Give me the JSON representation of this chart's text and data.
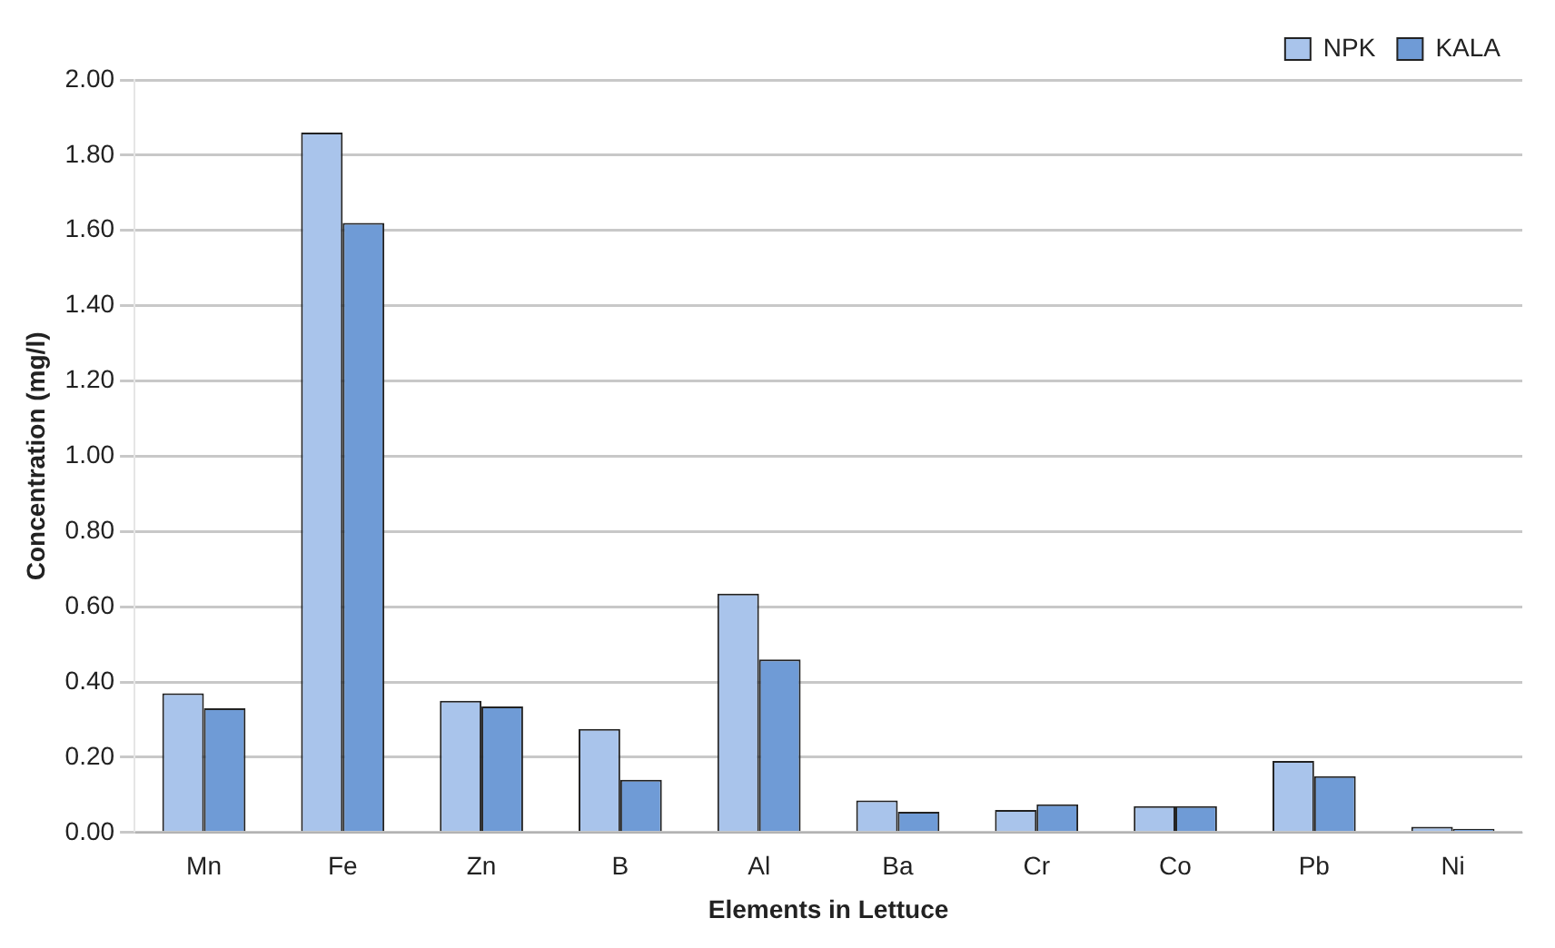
{
  "chart_data": {
    "type": "bar",
    "xlabel": "Elements in Lettuce",
    "ylabel": "Concentration (mg/l)",
    "categories": [
      "Mn",
      "Fe",
      "Zn",
      "B",
      "Al",
      "Ba",
      "Cr",
      "Co",
      "Pb",
      "Ni"
    ],
    "series": [
      {
        "name": "NPK",
        "color": "#a9c4eb",
        "values": [
          0.37,
          1.86,
          0.35,
          0.275,
          0.635,
          0.085,
          0.06,
          0.07,
          0.19,
          0.015
        ]
      },
      {
        "name": "KALA",
        "color": "#6f9bd6",
        "values": [
          0.33,
          1.62,
          0.335,
          0.14,
          0.46,
          0.055,
          0.075,
          0.07,
          0.15,
          0.01
        ]
      }
    ],
    "ylim": [
      0,
      2
    ],
    "yticks": [
      {
        "value": 0,
        "label": "0.00"
      },
      {
        "value": 0.2,
        "label": "0.20"
      },
      {
        "value": 0.4,
        "label": "0.40"
      },
      {
        "value": 0.6,
        "label": "0.60"
      },
      {
        "value": 0.8,
        "label": "0.80"
      },
      {
        "value": 1,
        "label": "1.00"
      },
      {
        "value": 1.2,
        "label": "1.20"
      },
      {
        "value": 1.4,
        "label": "1.40"
      },
      {
        "value": 1.6,
        "label": "1.60"
      },
      {
        "value": 1.8,
        "label": "1.80"
      },
      {
        "value": 2,
        "label": "2.00"
      }
    ],
    "grid": "y",
    "legend": "top right"
  }
}
